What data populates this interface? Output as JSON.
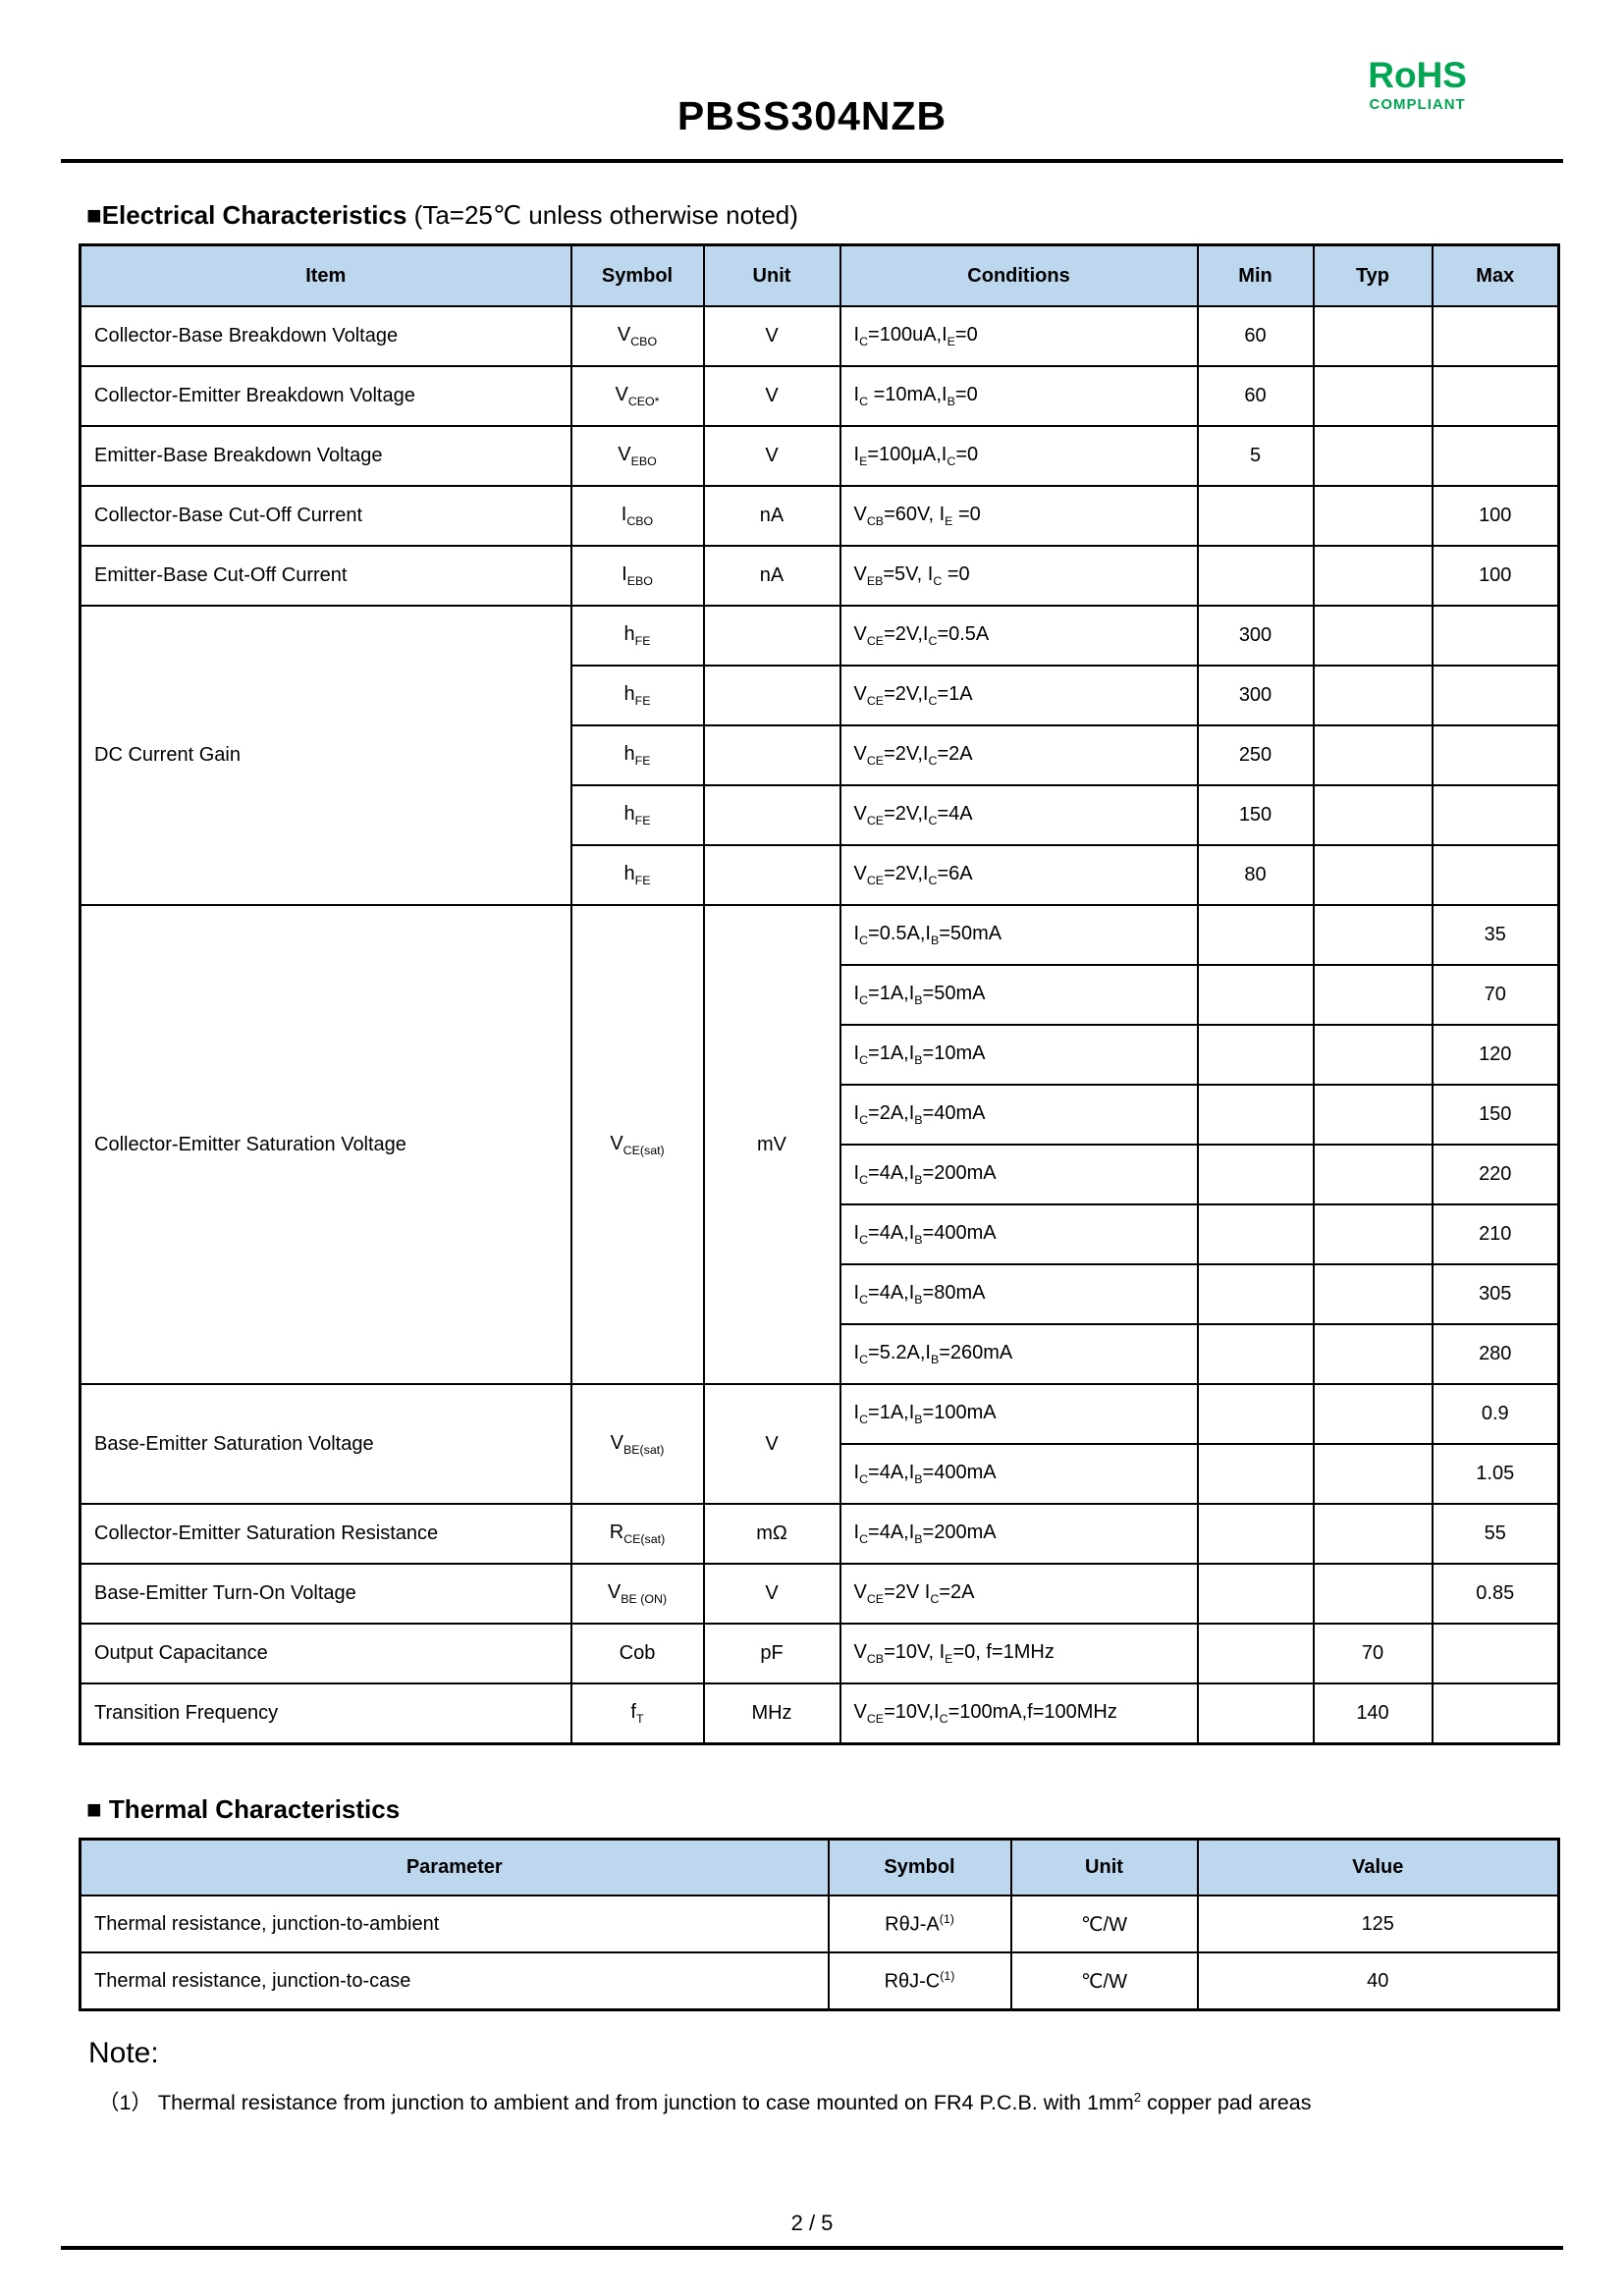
{
  "page": {
    "title": "PBSS304NZB",
    "rohs_line1": "RoHS",
    "rohs_line2": "COMPLIANT",
    "footer_page": "2 / 5",
    "colors": {
      "table_header_bg": "#BDD7EE",
      "rohs_green": "#00A651",
      "border": "#000000"
    }
  },
  "electrical": {
    "heading_bold": "■Electrical Characteristics",
    "heading_note": " (Ta=25℃ unless otherwise noted)",
    "table": {
      "name": "electrical-characteristics-table",
      "columns": [
        "Item",
        "Symbol",
        "Unit",
        "Conditions",
        "Min",
        "Typ",
        "Max"
      ],
      "rows": [
        [
          {
            "t": "Collector-Base Breakdown Voltage",
            "a": "l"
          },
          {
            "h": "V<sub>CBO</sub>"
          },
          {
            "t": "V"
          },
          {
            "h": "I<sub>C</sub>=100uA,I<sub>E</sub>=0",
            "a": "l"
          },
          {
            "t": "60"
          },
          {
            "t": ""
          },
          {
            "t": ""
          }
        ],
        [
          {
            "t": "Collector-Emitter Breakdown Voltage",
            "a": "l"
          },
          {
            "h": "V<sub>CEO*</sub>"
          },
          {
            "t": "V"
          },
          {
            "h": "I<sub>C</sub> =10mA,I<sub>B</sub>=0",
            "a": "l"
          },
          {
            "t": "60"
          },
          {
            "t": ""
          },
          {
            "t": ""
          }
        ],
        [
          {
            "t": "Emitter-Base Breakdown Voltage",
            "a": "l"
          },
          {
            "h": "V<sub>EBO</sub>"
          },
          {
            "t": "V"
          },
          {
            "h": "I<sub>E</sub>=100μA,I<sub>C</sub>=0",
            "a": "l"
          },
          {
            "t": "5"
          },
          {
            "t": ""
          },
          {
            "t": ""
          }
        ],
        [
          {
            "t": "Collector-Base Cut-Off Current",
            "a": "l"
          },
          {
            "h": "I<sub>CBO</sub>"
          },
          {
            "t": "nA"
          },
          {
            "h": "V<sub>CB</sub>=60V, I<sub>E</sub> =0",
            "a": "l"
          },
          {
            "t": ""
          },
          {
            "t": ""
          },
          {
            "t": "100"
          }
        ],
        [
          {
            "t": "Emitter-Base Cut-Off Current",
            "a": "l"
          },
          {
            "h": "I<sub>EBO</sub>"
          },
          {
            "t": "nA"
          },
          {
            "h": "V<sub>EB</sub>=5V, I<sub>C</sub> =0",
            "a": "l"
          },
          {
            "t": ""
          },
          {
            "t": ""
          },
          {
            "t": "100"
          }
        ],
        [
          {
            "t": "DC Current Gain",
            "a": "l",
            "rs": 5
          },
          {
            "h": "h<sub>FE</sub>"
          },
          {
            "t": ""
          },
          {
            "h": "V<sub>CE</sub>=2V,I<sub>C</sub>=0.5A",
            "a": "l"
          },
          {
            "t": "300"
          },
          {
            "t": ""
          },
          {
            "t": ""
          }
        ],
        [
          {
            "h": "h<sub>FE</sub>"
          },
          {
            "t": ""
          },
          {
            "h": "V<sub>CE</sub>=2V,I<sub>C</sub>=1A",
            "a": "l"
          },
          {
            "t": "300"
          },
          {
            "t": ""
          },
          {
            "t": ""
          }
        ],
        [
          {
            "h": "h<sub>FE</sub>"
          },
          {
            "t": ""
          },
          {
            "h": "V<sub>CE</sub>=2V,I<sub>C</sub>=2A",
            "a": "l"
          },
          {
            "t": "250"
          },
          {
            "t": ""
          },
          {
            "t": ""
          }
        ],
        [
          {
            "h": "h<sub>FE</sub>"
          },
          {
            "t": ""
          },
          {
            "h": "V<sub>CE</sub>=2V,I<sub>C</sub>=4A",
            "a": "l"
          },
          {
            "t": "150"
          },
          {
            "t": ""
          },
          {
            "t": ""
          }
        ],
        [
          {
            "h": "h<sub>FE</sub>"
          },
          {
            "t": ""
          },
          {
            "h": "V<sub>CE</sub>=2V,I<sub>C</sub>=6A",
            "a": "l"
          },
          {
            "t": "80"
          },
          {
            "t": ""
          },
          {
            "t": ""
          }
        ],
        [
          {
            "t": "Collector-Emitter Saturation Voltage",
            "a": "l",
            "rs": 8
          },
          {
            "h": "V<sub>CE(sat)</sub>",
            "rs": 8
          },
          {
            "t": "mV",
            "rs": 8
          },
          {
            "h": "I<sub>C</sub>=0.5A,I<sub>B</sub>=50mA",
            "a": "l"
          },
          {
            "t": ""
          },
          {
            "t": ""
          },
          {
            "t": "35"
          }
        ],
        [
          {
            "h": "I<sub>C</sub>=1A,I<sub>B</sub>=50mA",
            "a": "l"
          },
          {
            "t": ""
          },
          {
            "t": ""
          },
          {
            "t": "70"
          }
        ],
        [
          {
            "h": "I<sub>C</sub>=1A,I<sub>B</sub>=10mA",
            "a": "l"
          },
          {
            "t": ""
          },
          {
            "t": ""
          },
          {
            "t": "120"
          }
        ],
        [
          {
            "h": "I<sub>C</sub>=2A,I<sub>B</sub>=40mA",
            "a": "l"
          },
          {
            "t": ""
          },
          {
            "t": ""
          },
          {
            "t": "150"
          }
        ],
        [
          {
            "h": "I<sub>C</sub>=4A,I<sub>B</sub>=200mA",
            "a": "l"
          },
          {
            "t": ""
          },
          {
            "t": ""
          },
          {
            "t": "220"
          }
        ],
        [
          {
            "h": "I<sub>C</sub>=4A,I<sub>B</sub>=400mA",
            "a": "l"
          },
          {
            "t": ""
          },
          {
            "t": ""
          },
          {
            "t": "210"
          }
        ],
        [
          {
            "h": "I<sub>C</sub>=4A,I<sub>B</sub>=80mA",
            "a": "l"
          },
          {
            "t": ""
          },
          {
            "t": ""
          },
          {
            "t": "305"
          }
        ],
        [
          {
            "h": "I<sub>C</sub>=5.2A,I<sub>B</sub>=260mA",
            "a": "l"
          },
          {
            "t": ""
          },
          {
            "t": ""
          },
          {
            "t": "280"
          }
        ],
        [
          {
            "t": "Base-Emitter Saturation Voltage",
            "a": "l",
            "rs": 2
          },
          {
            "h": "V<sub>BE(sat)</sub>",
            "rs": 2
          },
          {
            "t": "V",
            "rs": 2
          },
          {
            "h": "I<sub>C</sub>=1A,I<sub>B</sub>=100mA",
            "a": "l"
          },
          {
            "t": ""
          },
          {
            "t": ""
          },
          {
            "t": "0.9"
          }
        ],
        [
          {
            "h": "I<sub>C</sub>=4A,I<sub>B</sub>=400mA",
            "a": "l"
          },
          {
            "t": ""
          },
          {
            "t": ""
          },
          {
            "t": "1.05"
          }
        ],
        [
          {
            "t": "Collector-Emitter Saturation Resistance",
            "a": "l"
          },
          {
            "h": "R<sub>CE(sat)</sub>"
          },
          {
            "t": "mΩ"
          },
          {
            "h": "I<sub>C</sub>=4A,I<sub>B</sub>=200mA",
            "a": "l"
          },
          {
            "t": ""
          },
          {
            "t": ""
          },
          {
            "t": "55"
          }
        ],
        [
          {
            "t": "Base-Emitter Turn-On Voltage",
            "a": "l"
          },
          {
            "h": "V<sub>BE (ON)</sub>"
          },
          {
            "t": "V"
          },
          {
            "h": "V<sub>CE</sub>=2V I<sub>C</sub>=2A",
            "a": "l"
          },
          {
            "t": ""
          },
          {
            "t": ""
          },
          {
            "t": "0.85"
          }
        ],
        [
          {
            "t": "Output Capacitance",
            "a": "l"
          },
          {
            "t": "Cob"
          },
          {
            "t": "pF"
          },
          {
            "h": "V<sub>CB</sub>=10V, I<sub>E</sub>=0, f=1MHz",
            "a": "l"
          },
          {
            "t": ""
          },
          {
            "t": "70"
          },
          {
            "t": ""
          }
        ],
        [
          {
            "t": "Transition Frequency",
            "a": "l"
          },
          {
            "h": "f<sub>T</sub>"
          },
          {
            "t": "MHz"
          },
          {
            "h": "V<sub>CE</sub>=10V,I<sub>C</sub>=100mA,f=100MHz",
            "a": "l"
          },
          {
            "t": ""
          },
          {
            "t": "140"
          },
          {
            "t": ""
          }
        ]
      ]
    }
  },
  "thermal": {
    "heading": "■ Thermal Characteristics",
    "table": {
      "name": "thermal-characteristics-table",
      "columns": [
        "Parameter",
        "Symbol",
        "Unit",
        "Value"
      ],
      "rows": [
        [
          {
            "t": "Thermal resistance, junction-to-ambient",
            "a": "l"
          },
          {
            "h": "RθJ-A<sup>(1)</sup>"
          },
          {
            "t": "℃/W"
          },
          {
            "t": "125"
          }
        ],
        [
          {
            "t": "Thermal resistance, junction-to-case",
            "a": "l"
          },
          {
            "h": "RθJ-C<sup>(1)</sup>"
          },
          {
            "t": "℃/W"
          },
          {
            "t": "40"
          }
        ]
      ]
    }
  },
  "note": {
    "heading": "Note:",
    "body_html": "（1） Thermal resistance from junction to ambient and from junction to case mounted on FR4 P.C.B. with 1mm<sup>2</sup> copper pad areas"
  }
}
